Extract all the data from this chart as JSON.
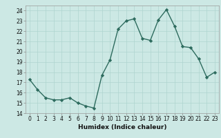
{
  "x": [
    0,
    1,
    2,
    3,
    4,
    5,
    6,
    7,
    8,
    9,
    10,
    11,
    12,
    13,
    14,
    15,
    16,
    17,
    18,
    19,
    20,
    21,
    22,
    23
  ],
  "y": [
    17.3,
    16.3,
    15.5,
    15.3,
    15.3,
    15.5,
    15.0,
    14.7,
    14.5,
    17.7,
    19.2,
    22.2,
    23.0,
    23.2,
    21.3,
    21.1,
    23.1,
    24.1,
    22.5,
    20.5,
    20.4,
    19.3,
    17.5,
    18.0
  ],
  "line_color": "#2d6b5e",
  "marker": "D",
  "marker_size": 2.2,
  "bg_color": "#cce8e4",
  "grid_color": "#aed4cf",
  "xlabel": "Humidex (Indice chaleur)",
  "xlim": [
    -0.5,
    23.5
  ],
  "ylim": [
    14,
    24.5
  ],
  "yticks": [
    14,
    15,
    16,
    17,
    18,
    19,
    20,
    21,
    22,
    23,
    24
  ],
  "xticks": [
    0,
    1,
    2,
    3,
    4,
    5,
    6,
    7,
    8,
    9,
    10,
    11,
    12,
    13,
    14,
    15,
    16,
    17,
    18,
    19,
    20,
    21,
    22,
    23
  ],
  "tick_fontsize": 5.5,
  "xlabel_fontsize": 6.5,
  "grid_linewidth": 0.5,
  "line_width": 1.0
}
